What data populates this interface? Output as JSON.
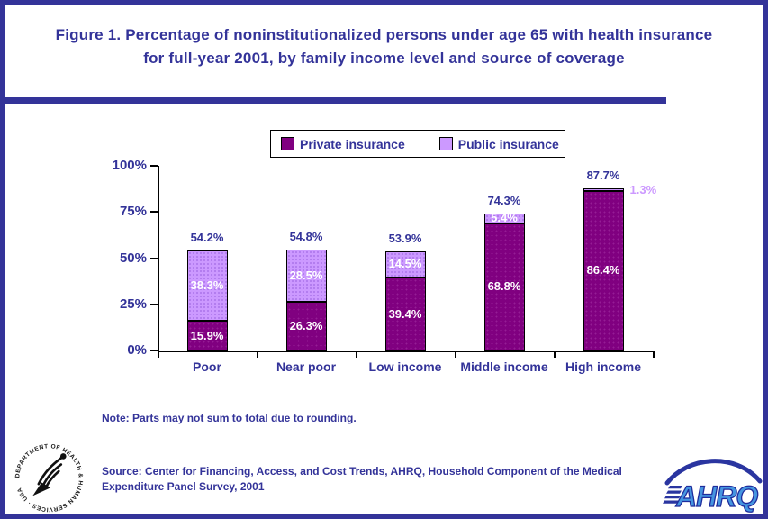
{
  "page": {
    "title": "Figure 1. Percentage of noninstitutionalized persons under age 65 with health insurance for full-year 2001, by family income level and source of coverage"
  },
  "legend": {
    "items": [
      {
        "label": "Private insurance",
        "color": "#800080"
      },
      {
        "label": "Public insurance",
        "color": "#cc99ff"
      }
    ]
  },
  "chart_data": {
    "type": "bar",
    "subtype": "stacked-vertical",
    "title": "Percentage of noninstitutionalized persons under age 65 with health insurance for full-year 2001, by family income level and source of coverage",
    "categories": [
      "Poor",
      "Near poor",
      "Low income",
      "Middle income",
      "High income"
    ],
    "series": [
      {
        "name": "Private insurance",
        "color": "#800080",
        "values": [
          15.9,
          26.3,
          39.4,
          68.8,
          86.4
        ],
        "labels": [
          "15.9%",
          "26.3%",
          "39.4%",
          "68.8%",
          "86.4%"
        ]
      },
      {
        "name": "Public insurance",
        "color": "#cc99ff",
        "values": [
          38.3,
          28.5,
          14.5,
          5.4,
          1.3
        ],
        "labels": [
          "38.3%",
          "28.5%",
          "14.5%",
          "5.4%",
          "1.3%"
        ]
      }
    ],
    "totals": [
      "54.2%",
      "54.8%",
      "53.9%",
      "74.3%",
      "87.7%"
    ],
    "y_ticks": [
      {
        "value": 0,
        "label": "0%"
      },
      {
        "value": 25,
        "label": "25%"
      },
      {
        "value": 50,
        "label": "50%"
      },
      {
        "value": 75,
        "label": "75%"
      },
      {
        "value": 100,
        "label": "100%"
      }
    ],
    "ylim": [
      0,
      100
    ],
    "xlabel": "",
    "ylabel": "",
    "grid": false,
    "legend_position": "top-center"
  },
  "footer": {
    "note": "Note: Parts may not sum to total due to rounding.",
    "source": "Source: Center for Financing, Access, and Cost Trends, AHRQ, Household Component of the Medical Expenditure Panel Survey, 2001",
    "hhs_seal_text": "DEPARTMENT OF HEALTH & HUMAN SERVICES · USA",
    "ahrq_logo_text": "AHRQ"
  },
  "colors": {
    "accent_navy": "#333399",
    "private_purple": "#800080",
    "public_lavender": "#cc99ff",
    "axis_black": "#000000",
    "label_white": "#ffffff"
  }
}
